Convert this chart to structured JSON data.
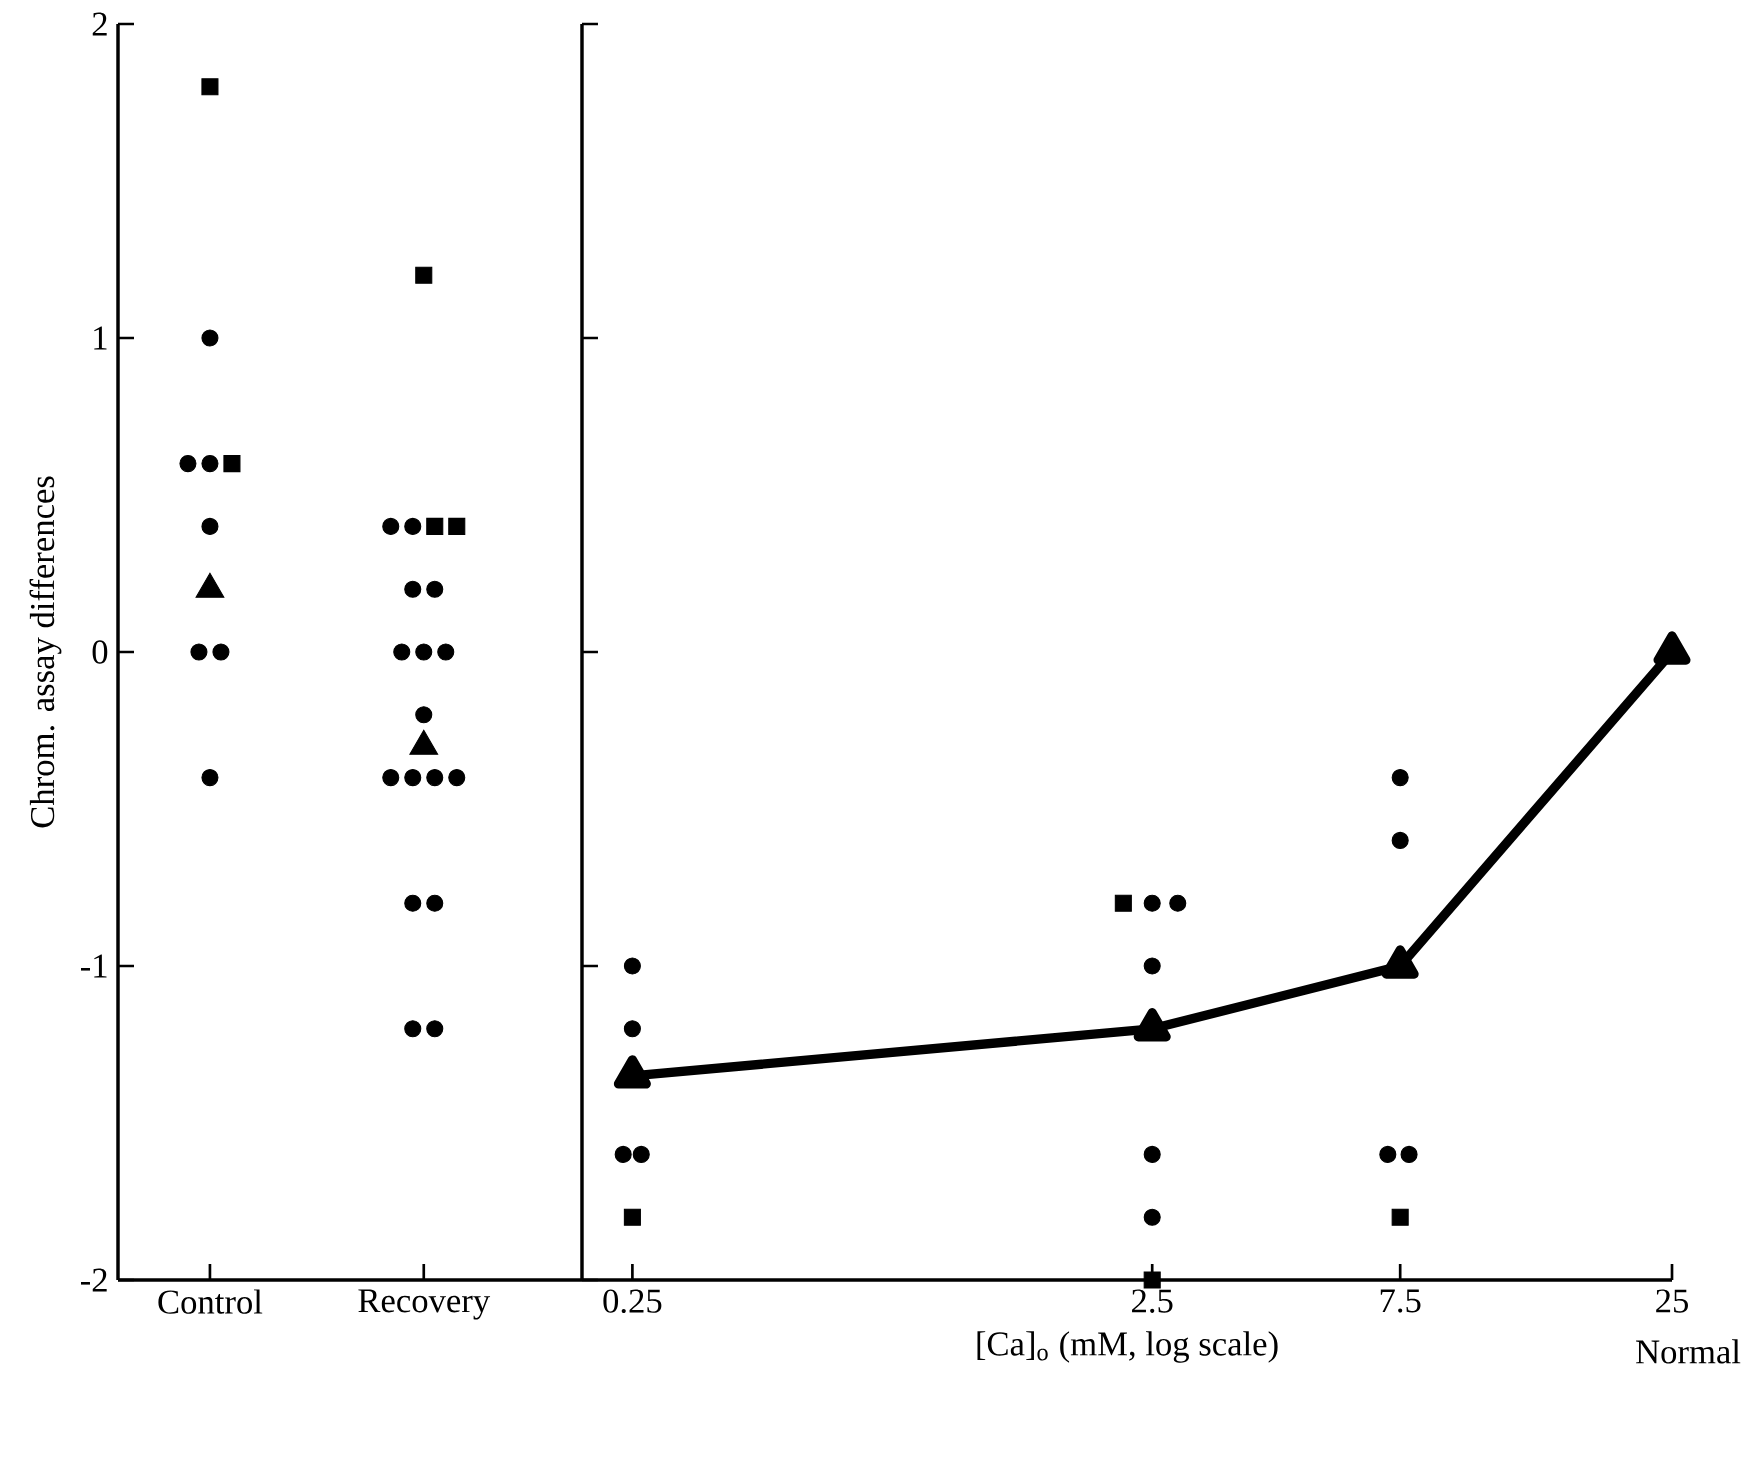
{
  "chart_data": [
    {
      "type": "scatter",
      "ylabel": "Chrom. assay differences",
      "categories": [
        "Control",
        "Recovery"
      ],
      "ylim": [
        -2,
        2
      ],
      "yticks": [
        -2,
        -1,
        0,
        1,
        2
      ],
      "series": [
        {
          "color": "#000000",
          "marker": "circle",
          "x": [
            "Control",
            "Control",
            "Control",
            "Control",
            "Control",
            "Control",
            "Control",
            "Recovery",
            "Recovery",
            "Recovery",
            "Recovery",
            "Recovery",
            "Recovery",
            "Recovery",
            "Recovery",
            "Recovery",
            "Recovery",
            "Recovery",
            "Recovery",
            "Recovery",
            "Recovery",
            "Recovery",
            "Recovery"
          ],
          "values": [
            1.0,
            0.6,
            0.6,
            0.4,
            0,
            0,
            -0.4,
            0.4,
            0.4,
            0.2,
            0.2,
            0,
            0,
            0,
            -0.2,
            -0.4,
            -0.4,
            -0.4,
            -0.8,
            -0.8,
            -1.2,
            -1.2,
            -0.4
          ]
        },
        {
          "color": "#000000",
          "marker": "square",
          "x": [
            "Control",
            "Control",
            "Recovery",
            "Recovery",
            "Recovery"
          ],
          "values": [
            1.8,
            0.6,
            1.2,
            0.4,
            0.4
          ]
        },
        {
          "color": "#000000",
          "marker": "triangle",
          "x": [
            "Control",
            "Recovery"
          ],
          "values": [
            0.2,
            -0.3
          ]
        }
      ]
    },
    {
      "type": "scatter",
      "xlabel": "[Ca]$_{o}$  (mM, log scale)",
      "annotations": [
        "Normal"
      ],
      "log": "x",
      "xlim": [
        0.2,
        25
      ],
      "xticks": [
        0.25,
        2.5,
        7.5,
        25
      ],
      "ylim": [
        -2,
        2
      ],
      "yticks": [
        -2,
        -1,
        0,
        1,
        2
      ],
      "tick_labels": "x",
      "series": [
        {
          "color": "#000000",
          "marker": "circle",
          "x": [
            0.25,
            0.25,
            0.24,
            0.26,
            2.5,
            2.8,
            2.5,
            2.5,
            2.5,
            7.5,
            7.5,
            7.5,
            7.1,
            7.8
          ],
          "values": [
            -1.0,
            -1.2,
            -1.6,
            -1.6,
            -0.8,
            -0.8,
            -1.0,
            -1.6,
            -1.8,
            -0.4,
            -0.6,
            -1.0,
            -1.6,
            -1.6
          ]
        },
        {
          "color": "#000000",
          "marker": "square",
          "x": [
            0.25,
            2.2,
            2.5,
            7.5
          ],
          "values": [
            -1.8,
            -0.8,
            -2.0,
            -1.8
          ]
        },
        {
          "type": "line",
          "color": "#000000",
          "marker": "triangle",
          "line_style": "solid",
          "x": [
            0.25,
            2.5,
            7.5,
            25
          ],
          "values": [
            -1.35,
            -1.2,
            -1.0,
            0
          ]
        }
      ]
    }
  ]
}
